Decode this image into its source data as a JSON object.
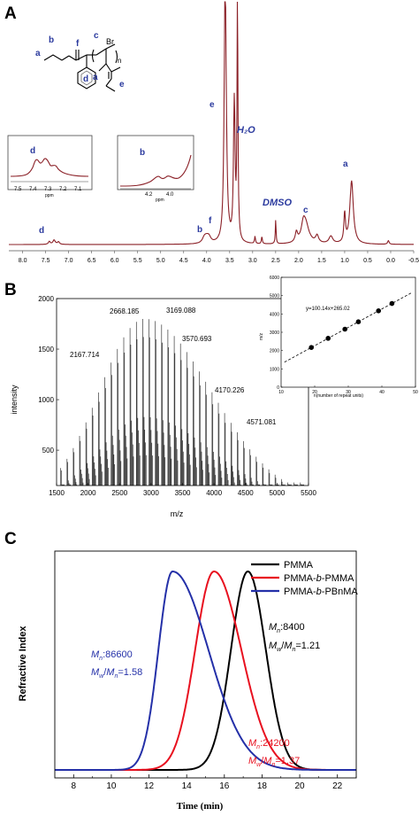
{
  "figure": {
    "panels": [
      "A",
      "B",
      "C"
    ]
  },
  "panel_a": {
    "xticks": [
      "8.0",
      "7.5",
      "7.0",
      "6.5",
      "6.0",
      "5.5",
      "5.0",
      "4.5",
      "4.0",
      "3.5",
      "3.0",
      "2.5",
      "2.0",
      "1.5",
      "1.0",
      "0.5",
      "0.0",
      "-0.5"
    ],
    "peak_labels": [
      "a",
      "b",
      "c",
      "d",
      "e",
      "f"
    ],
    "solvent_labels": {
      "h2o": "H₂O",
      "dmso": "DMSO"
    },
    "structure_labels": {
      "br": "Br",
      "n": "n"
    },
    "inset_d": {
      "label": "d",
      "ticks": [
        "7.5",
        "7.4",
        "7.3",
        "7.2",
        "7.1"
      ],
      "axis": "ppm"
    },
    "inset_b": {
      "label": "b",
      "ticks": [
        "4.2",
        "4.0"
      ],
      "axis": "ppm"
    },
    "line_color": "#8b2027",
    "label_color": "#2b3a9e"
  },
  "panel_b": {
    "xlabel": "m/z",
    "ylabel": "intensity",
    "xticks": [
      "1500",
      "2000",
      "2500",
      "3000",
      "3500",
      "4000",
      "4500",
      "5000",
      "5500"
    ],
    "yticks": [
      "500",
      "1000",
      "1500",
      "2000"
    ],
    "annotations": [
      "2167.714",
      "2668.185",
      "3169.088",
      "3570.693",
      "4170.226",
      "4571.081"
    ],
    "inset": {
      "xlabel": "n(number of repeat units)",
      "ylabel": "m/z",
      "equation": "y=100.14x+265.02",
      "xticks": [
        "10",
        "20",
        "30",
        "40",
        "50"
      ],
      "yticks": [
        "0",
        "1000",
        "2000",
        "3000",
        "4000",
        "5000",
        "6000"
      ]
    }
  },
  "panel_c": {
    "xlabel": "Time (min)",
    "ylabel": "Refractive Index",
    "xticks": [
      "8",
      "10",
      "12",
      "14",
      "16",
      "18",
      "20",
      "22"
    ],
    "legend": [
      "PMMA",
      "PMMA-b-PMMA",
      "PMMA-b-PBnMA"
    ],
    "legend_italic_b": "b",
    "mn_labels": {
      "blue_mn": ":86600",
      "blue_pdi": "=1.58",
      "black_mn": ":8400",
      "black_pdi": "=1.21",
      "red_mn": ":24200",
      "red_pdi": "=1.37"
    },
    "sym": {
      "m": "M",
      "n": "n",
      "w": "w",
      "slash": "/"
    },
    "colors": {
      "pmma": "#000000",
      "pmma_b_pmma": "#e8101f",
      "pmma_b_pbnma": "#2430a8"
    }
  },
  "chart_data": [
    {
      "type": "line",
      "panel": "A",
      "xlabel": "",
      "ylabel": "",
      "xlim": [
        8.3,
        -0.5
      ],
      "x_reversed": true,
      "peaks": [
        {
          "label": "d",
          "x": 7.3,
          "height": 0.005
        },
        {
          "label": "b",
          "x": 4.0,
          "height": 0.02
        },
        {
          "label": "f",
          "x": 3.58,
          "height": 0.25
        },
        {
          "label": "e",
          "x": 3.6,
          "height": 0.98
        },
        {
          "label": "",
          "x": 3.4,
          "height": 0.58
        },
        {
          "label": "H2O",
          "x": 3.33,
          "height": 1.0
        },
        {
          "label": "DMSO",
          "x": 2.5,
          "height": 0.1
        },
        {
          "label": "c",
          "x": 1.85,
          "height": 0.08
        },
        {
          "label": "a",
          "x": 0.85,
          "height": 0.26
        },
        {
          "label": "",
          "x": 1.0,
          "height": 0.12
        }
      ]
    },
    {
      "type": "bar",
      "panel": "B",
      "xlabel": "m/z",
      "ylabel": "intensity",
      "xlim": [
        1500,
        5500
      ],
      "ylim": [
        150,
        2000
      ],
      "annotated_peaks": [
        {
          "x": 2167.714,
          "y": 1400
        },
        {
          "x": 2668.185,
          "y": 1800
        },
        {
          "x": 3169.088,
          "y": 1800
        },
        {
          "x": 3570.693,
          "y": 1520
        },
        {
          "x": 4170.226,
          "y": 1010
        },
        {
          "x": 4571.081,
          "y": 720
        }
      ]
    },
    {
      "type": "scatter",
      "panel": "B-inset",
      "xlabel": "n(number of repeat units)",
      "ylabel": "m/z",
      "xlim": [
        10,
        50
      ],
      "ylim": [
        0,
        6000
      ],
      "x": [
        19,
        24,
        29,
        33,
        39,
        43
      ],
      "y": [
        2168,
        2668,
        3169,
        3571,
        4170,
        4571
      ],
      "fit": {
        "slope": 100.14,
        "intercept": 265.02,
        "label": "y=100.14x+265.02"
      }
    },
    {
      "type": "line",
      "panel": "C",
      "xlabel": "Time (min)",
      "ylabel": "Refractive Index",
      "xlim": [
        7,
        23
      ],
      "series": [
        {
          "name": "PMMA",
          "peak_x": 17.25,
          "peak_y": 1.0,
          "width_left": 0.9,
          "width_right": 0.95
        },
        {
          "name": "PMMA-b-PMMA",
          "peak_x": 15.45,
          "peak_y": 1.0,
          "width_left": 1.0,
          "width_right": 1.45
        },
        {
          "name": "PMMA-b-PBnMA",
          "peak_x": 13.25,
          "peak_y": 1.0,
          "width_left": 0.75,
          "width_right": 1.9
        }
      ]
    }
  ]
}
